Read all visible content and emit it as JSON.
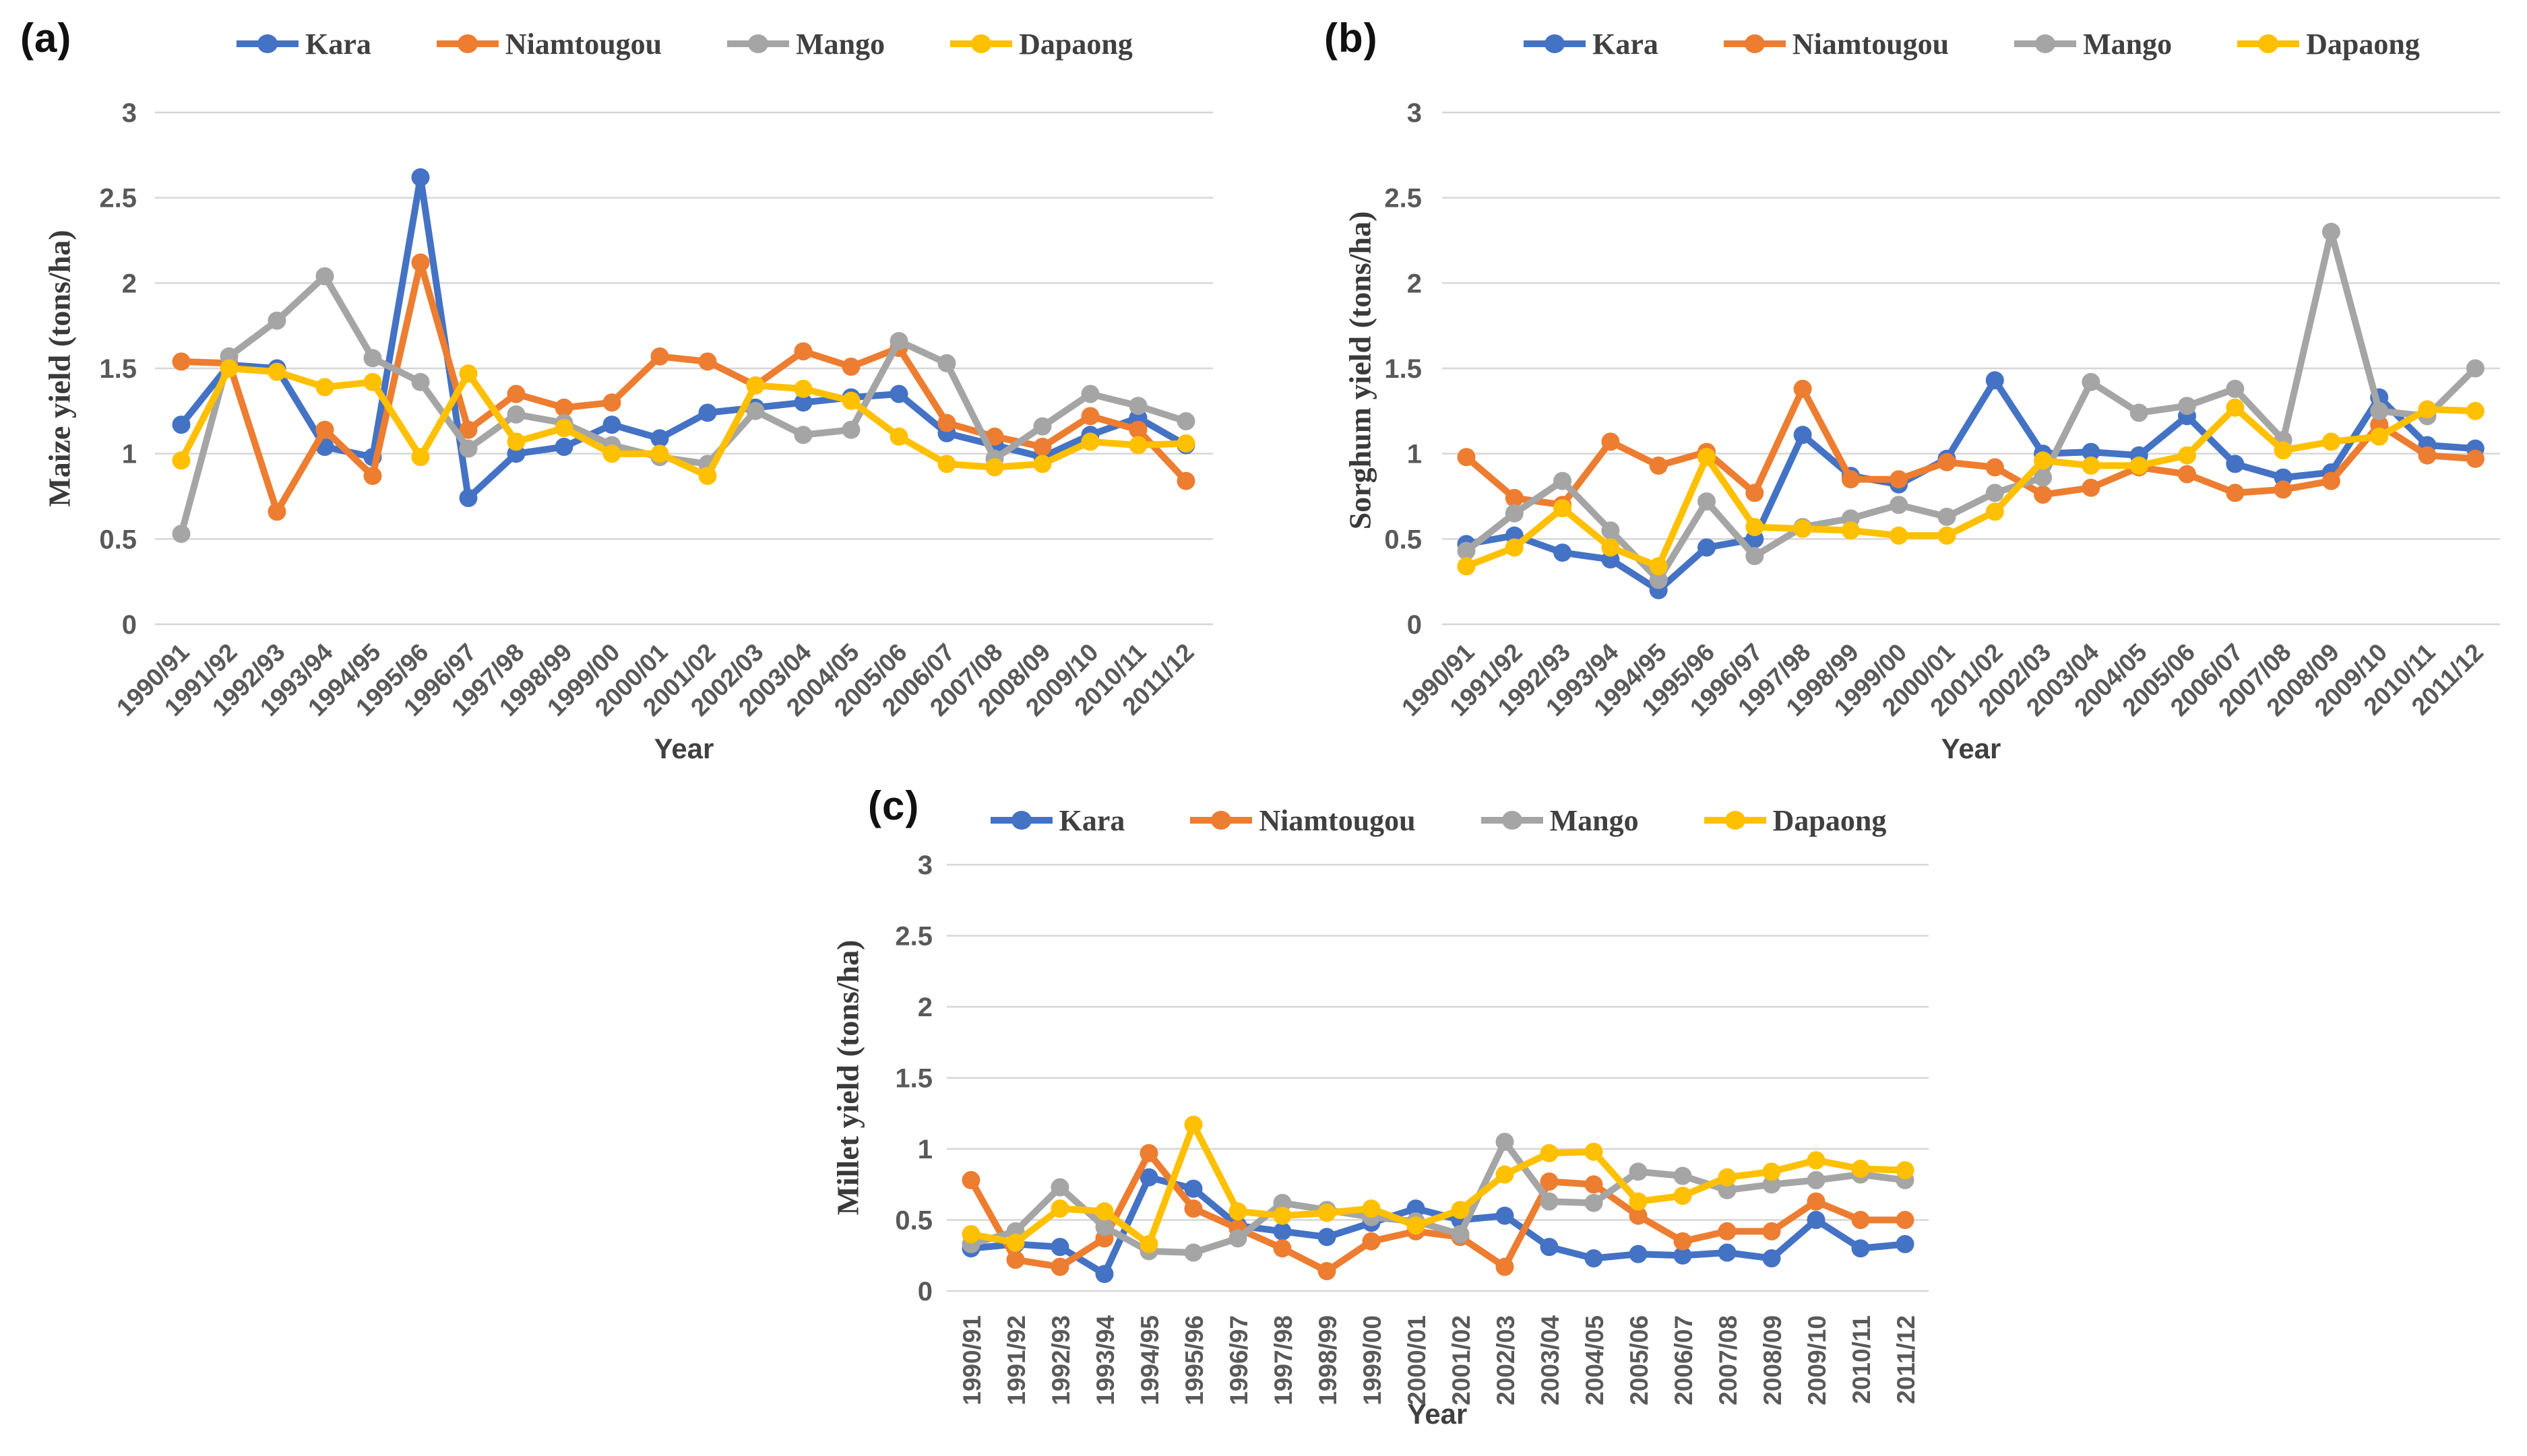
{
  "figure_type": "three panel line chart figure of crop yields",
  "colors": {
    "kara": "#4472C4",
    "niamtougou": "#ED7D31",
    "mango": "#A5A5A5",
    "dapaong": "#FFC000",
    "grid": "#D6D6D6",
    "tick_text": "#595959",
    "axis_title_text": "#3a3a3a"
  },
  "legend_entries": [
    "Kara",
    "Niamtougou",
    "Mango",
    "Dapaong"
  ],
  "chart_data": [
    {
      "id": "a",
      "type": "line",
      "panel_label": "(a)",
      "ylabel": "Maize yield (tons/ha)",
      "xlabel": "Year",
      "ylim": [
        0,
        3
      ],
      "yticks": [
        "0",
        "0.5",
        "1",
        "1.5",
        "2",
        "2.5",
        "3"
      ],
      "grid": true,
      "legend_position": "top",
      "x_tick_rotation": -45,
      "categories": [
        "1990/91",
        "1991/92",
        "1992/93",
        "1993/94",
        "1994/95",
        "1995/96",
        "1996/97",
        "1997/98",
        "1998/99",
        "1999/00",
        "2000/01",
        "2001/02",
        "2002/03",
        "2003/04",
        "2004/05",
        "2005/06",
        "2006/07",
        "2007/08",
        "2008/09",
        "2009/10",
        "2010/11",
        "2011/12"
      ],
      "series": [
        {
          "name": "Kara",
          "color": "#4472C4",
          "values": [
            1.17,
            1.52,
            1.5,
            1.04,
            0.98,
            2.62,
            0.74,
            1.0,
            1.04,
            1.17,
            1.09,
            1.24,
            1.27,
            1.3,
            1.33,
            1.35,
            1.12,
            1.05,
            0.98,
            1.11,
            1.21,
            1.05
          ]
        },
        {
          "name": "Niamtougou",
          "color": "#ED7D31",
          "values": [
            1.54,
            1.53,
            0.66,
            1.14,
            0.87,
            2.12,
            1.14,
            1.35,
            1.27,
            1.3,
            1.57,
            1.54,
            1.4,
            1.6,
            1.51,
            1.62,
            1.18,
            1.1,
            1.04,
            1.22,
            1.14,
            0.84
          ]
        },
        {
          "name": "Mango",
          "color": "#A5A5A5",
          "values": [
            0.53,
            1.57,
            1.78,
            2.04,
            1.56,
            1.42,
            1.03,
            1.23,
            1.18,
            1.05,
            0.98,
            0.94,
            1.25,
            1.11,
            1.14,
            1.66,
            1.53,
            0.97,
            1.16,
            1.35,
            1.28,
            1.19
          ]
        },
        {
          "name": "Dapaong",
          "color": "#FFC000",
          "values": [
            0.96,
            1.5,
            1.48,
            1.39,
            1.42,
            0.98,
            1.47,
            1.07,
            1.15,
            1.0,
            1.0,
            0.87,
            1.4,
            1.38,
            1.31,
            1.1,
            0.94,
            0.92,
            0.94,
            1.07,
            1.05,
            1.06
          ]
        }
      ]
    },
    {
      "id": "b",
      "type": "line",
      "panel_label": "(b)",
      "ylabel": "Sorghum yield (tons/ha)",
      "xlabel": "Year",
      "ylim": [
        0,
        3
      ],
      "yticks": [
        "0",
        "0.5",
        "1",
        "1.5",
        "2",
        "2.5",
        "3"
      ],
      "grid": true,
      "legend_position": "top",
      "x_tick_rotation": -45,
      "categories": [
        "1990/91",
        "1991/92",
        "1992/93",
        "1993/94",
        "1994/95",
        "1995/96",
        "1996/97",
        "1997/98",
        "1998/99",
        "1999/00",
        "2000/01",
        "2001/02",
        "2002/03",
        "2003/04",
        "2004/05",
        "2005/06",
        "2006/07",
        "2007/08",
        "2008/09",
        "2009/10",
        "2010/11",
        "2011/12"
      ],
      "series": [
        {
          "name": "Kara",
          "color": "#4472C4",
          "values": [
            0.47,
            0.52,
            0.42,
            0.38,
            0.2,
            0.45,
            0.5,
            1.11,
            0.87,
            0.82,
            0.97,
            1.43,
            1.0,
            1.01,
            0.99,
            1.22,
            0.94,
            0.86,
            0.89,
            1.33,
            1.05,
            1.03
          ]
        },
        {
          "name": "Niamtougou",
          "color": "#ED7D31",
          "values": [
            0.98,
            0.74,
            0.7,
            1.07,
            0.93,
            1.01,
            0.77,
            1.38,
            0.85,
            0.85,
            0.95,
            0.92,
            0.76,
            0.8,
            0.92,
            0.88,
            0.77,
            0.79,
            0.84,
            1.17,
            0.99,
            0.97
          ]
        },
        {
          "name": "Mango",
          "color": "#A5A5A5",
          "values": [
            0.43,
            0.65,
            0.84,
            0.55,
            0.26,
            0.72,
            0.4,
            0.57,
            0.62,
            0.7,
            0.63,
            0.77,
            0.86,
            1.42,
            1.24,
            1.28,
            1.38,
            1.08,
            2.3,
            1.25,
            1.22,
            1.5
          ]
        },
        {
          "name": "Dapaong",
          "color": "#FFC000",
          "values": [
            0.34,
            0.45,
            0.68,
            0.45,
            0.34,
            0.98,
            0.57,
            0.56,
            0.55,
            0.52,
            0.52,
            0.66,
            0.96,
            0.93,
            0.93,
            0.99,
            1.27,
            1.02,
            1.07,
            1.1,
            1.26,
            1.25
          ]
        }
      ]
    },
    {
      "id": "c",
      "type": "line",
      "panel_label": "(c)",
      "ylabel": "Millet yield (tons/ha)",
      "xlabel": "Year",
      "ylim": [
        0,
        3
      ],
      "yticks": [
        "0",
        "0.5",
        "1",
        "1.5",
        "2",
        "2.5",
        "3"
      ],
      "grid": true,
      "legend_position": "top",
      "x_tick_rotation": -90,
      "categories": [
        "1990/91",
        "1991/92",
        "1992/93",
        "1993/94",
        "1994/95",
        "1995/96",
        "1996/97",
        "1997/98",
        "1998/99",
        "1999/00",
        "2000/01",
        "2001/02",
        "2002/03",
        "2003/04",
        "2004/05",
        "2005/06",
        "2006/07",
        "2007/08",
        "2008/09",
        "2009/10",
        "2010/11",
        "2011/12"
      ],
      "series": [
        {
          "name": "Kara",
          "color": "#4472C4",
          "values": [
            0.3,
            0.33,
            0.31,
            0.12,
            0.8,
            0.72,
            0.46,
            0.42,
            0.38,
            0.48,
            0.58,
            0.5,
            0.53,
            0.31,
            0.23,
            0.26,
            0.25,
            0.27,
            0.23,
            0.5,
            0.3,
            0.33
          ]
        },
        {
          "name": "Niamtougou",
          "color": "#ED7D31",
          "values": [
            0.78,
            0.22,
            0.17,
            0.37,
            0.97,
            0.58,
            0.44,
            0.3,
            0.14,
            0.35,
            0.42,
            0.38,
            0.17,
            0.77,
            0.75,
            0.53,
            0.35,
            0.42,
            0.42,
            0.63,
            0.5,
            0.5
          ]
        },
        {
          "name": "Mango",
          "color": "#A5A5A5",
          "values": [
            0.33,
            0.42,
            0.73,
            0.45,
            0.28,
            0.27,
            0.37,
            0.62,
            0.57,
            0.52,
            0.49,
            0.4,
            1.05,
            0.63,
            0.62,
            0.84,
            0.81,
            0.71,
            0.75,
            0.78,
            0.82,
            0.78
          ]
        },
        {
          "name": "Dapaong",
          "color": "#FFC000",
          "values": [
            0.4,
            0.34,
            0.58,
            0.56,
            0.33,
            1.17,
            0.56,
            0.53,
            0.55,
            0.58,
            0.46,
            0.57,
            0.82,
            0.97,
            0.98,
            0.63,
            0.67,
            0.8,
            0.84,
            0.92,
            0.86,
            0.85
          ]
        }
      ]
    }
  ]
}
